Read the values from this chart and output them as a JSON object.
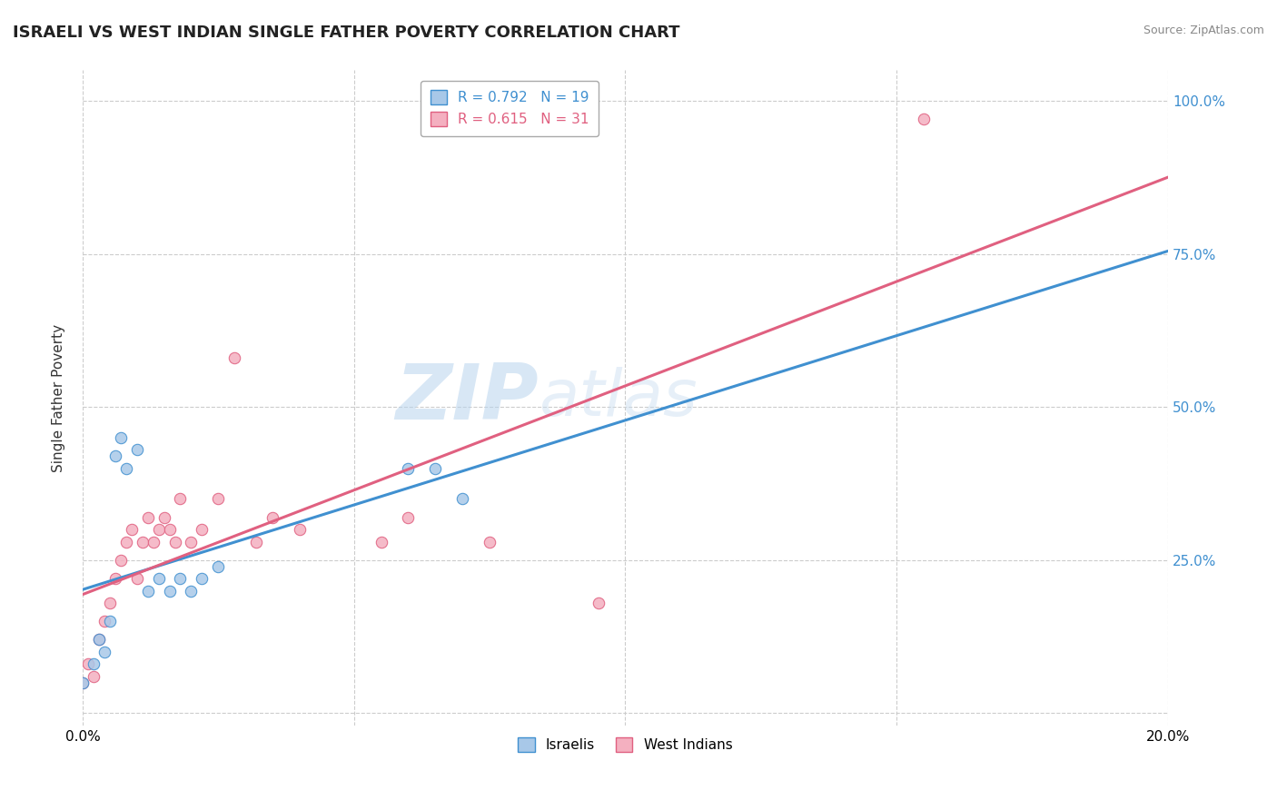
{
  "title": "ISRAELI VS WEST INDIAN SINGLE FATHER POVERTY CORRELATION CHART",
  "source": "Source: ZipAtlas.com",
  "xlabel": "",
  "ylabel": "Single Father Poverty",
  "watermark": "ZIPatlas",
  "xlim": [
    0.0,
    0.2
  ],
  "ylim": [
    -0.02,
    1.05
  ],
  "x_ticks": [
    0.0,
    0.05,
    0.1,
    0.15,
    0.2
  ],
  "x_tick_labels": [
    "0.0%",
    "",
    "",
    "",
    "20.0%"
  ],
  "y_ticks": [
    0.0,
    0.25,
    0.5,
    0.75,
    1.0
  ],
  "y_tick_labels_right": [
    "",
    "25.0%",
    "50.0%",
    "75.0%",
    "100.0%"
  ],
  "israeli_R": 0.792,
  "israeli_N": 19,
  "west_indian_R": 0.615,
  "west_indian_N": 31,
  "israeli_color": "#a8c8e8",
  "west_indian_color": "#f4b0c0",
  "israeli_line_color": "#4090d0",
  "west_indian_line_color": "#e06080",
  "grid_color": "#cccccc",
  "background_color": "#ffffff",
  "israeli_x": [
    0.0,
    0.002,
    0.003,
    0.004,
    0.005,
    0.006,
    0.007,
    0.008,
    0.01,
    0.012,
    0.014,
    0.016,
    0.018,
    0.02,
    0.022,
    0.025,
    0.06,
    0.065,
    0.07
  ],
  "israeli_y": [
    0.05,
    0.08,
    0.12,
    0.1,
    0.15,
    0.42,
    0.45,
    0.4,
    0.43,
    0.2,
    0.22,
    0.2,
    0.22,
    0.2,
    0.22,
    0.24,
    0.4,
    0.4,
    0.35
  ],
  "west_indian_x": [
    0.0,
    0.001,
    0.002,
    0.003,
    0.004,
    0.005,
    0.006,
    0.007,
    0.008,
    0.009,
    0.01,
    0.011,
    0.012,
    0.013,
    0.014,
    0.015,
    0.016,
    0.017,
    0.018,
    0.02,
    0.022,
    0.025,
    0.028,
    0.032,
    0.035,
    0.04,
    0.055,
    0.06,
    0.075,
    0.095,
    0.155
  ],
  "west_indian_y": [
    0.05,
    0.08,
    0.06,
    0.12,
    0.15,
    0.18,
    0.22,
    0.25,
    0.28,
    0.3,
    0.22,
    0.28,
    0.32,
    0.28,
    0.3,
    0.32,
    0.3,
    0.28,
    0.35,
    0.28,
    0.3,
    0.35,
    0.58,
    0.28,
    0.32,
    0.3,
    0.28,
    0.32,
    0.28,
    0.18,
    0.97
  ]
}
